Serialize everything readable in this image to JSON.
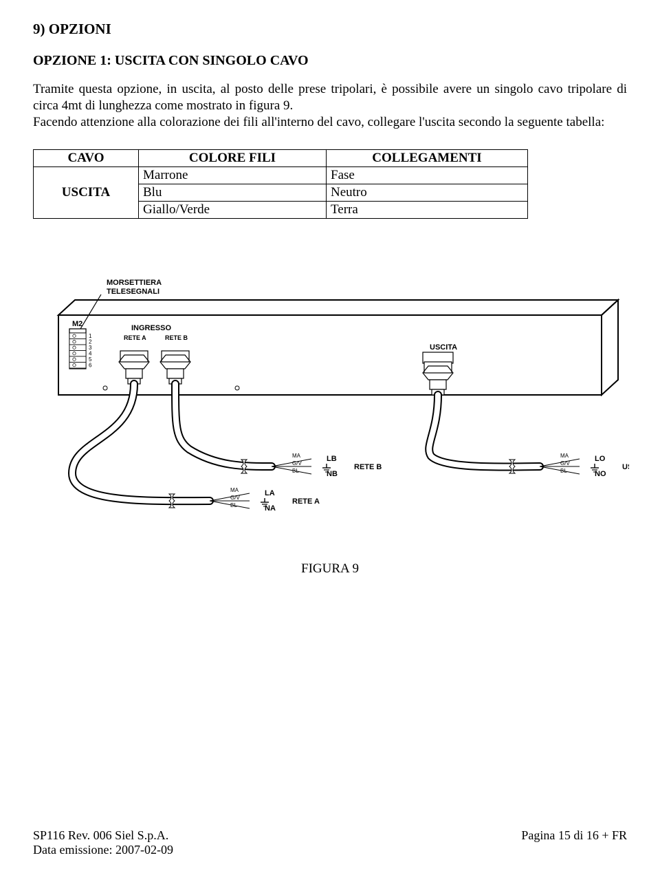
{
  "heading_section": "9)   OPZIONI",
  "heading_option": "OPZIONE 1: USCITA CON SINGOLO CAVO",
  "paragraph": "Tramite questa opzione, in uscita, al posto delle prese tripolari, è possibile avere un singolo cavo tripolare di circa 4mt di lunghezza come mostrato in figura 9.\nFacendo attenzione alla colorazione dei fili all'interno del cavo, collegare l'uscita secondo la seguente tabella:",
  "table": {
    "header": {
      "c1": "CAVO",
      "c2": "COLORE FILI",
      "c3": "COLLEGAMENTI"
    },
    "group": "USCITA",
    "rows": [
      {
        "color": "Marrone",
        "conn": "Fase"
      },
      {
        "color": "Blu",
        "conn": "Neutro"
      },
      {
        "color": "Giallo/Verde",
        "conn": "Terra"
      }
    ]
  },
  "figure": {
    "caption": "FIGURA 9",
    "labels": {
      "morsettiera1": "MORSETTIERA",
      "morsettiera2": "TELESEGNALI",
      "m2": "M2",
      "ingresso": "INGRESSO",
      "rete_a": "RETE A",
      "rete_b": "RETE B",
      "uscita": "USCITA",
      "pins": [
        "1",
        "2",
        "3",
        "4",
        "5",
        "6"
      ],
      "wire_ma": "MA",
      "wire_gv": "G/V",
      "wire_bl": "BL",
      "lb": "LB",
      "nb": "NB",
      "la": "LA",
      "na": "NA",
      "lo": "LO",
      "no": "NO",
      "reteb_lbl": "RETE B",
      "retea_lbl": "RETE A",
      "uscita_lbl": "USCITA"
    },
    "style": {
      "stroke": "#000000",
      "fill_bg": "#ffffff",
      "font_small": 9,
      "font_label": 11,
      "font_bold": 11,
      "stroke_thin": 1.2,
      "stroke_thick": 2,
      "stroke_cable": 3
    }
  },
  "footer": {
    "left1": "SP116 Rev. 006 Siel S.p.A.",
    "left2": "Data emissione: 2007-02-09",
    "right": "Pagina 15 di 16 + FR"
  }
}
